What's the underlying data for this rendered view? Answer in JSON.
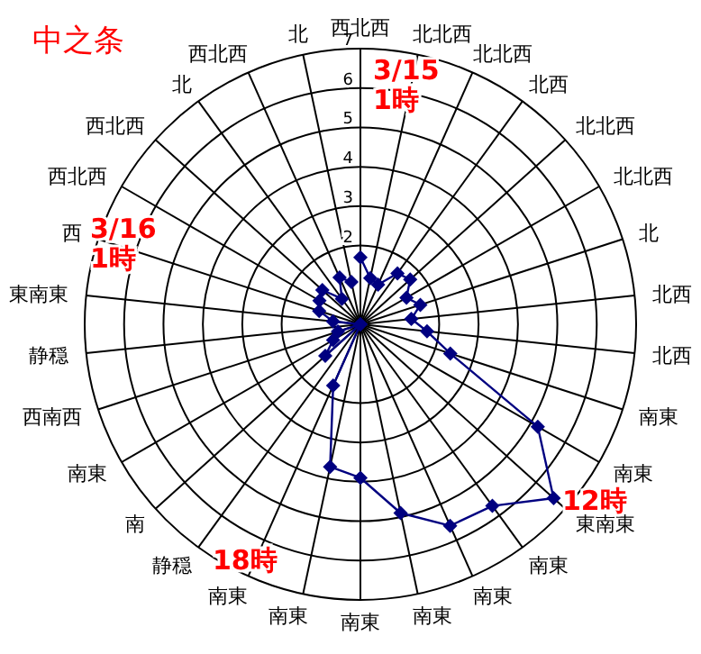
{
  "chart_data": {
    "type": "radar",
    "title": "中之条",
    "categories": [
      "西北西",
      "北北西",
      "北北西",
      "北西",
      "北北西",
      "北北西",
      "北",
      "北西",
      "北西",
      "南東",
      "南東",
      "東南東",
      "南東",
      "南東",
      "南東",
      "南東",
      "南東",
      "南東",
      "静穏",
      "南",
      "南東",
      "西南西",
      "静穏",
      "東南東",
      "西",
      "西北西",
      "西北西",
      "北",
      "西北西",
      "北"
    ],
    "series": [
      {
        "color": "#000080",
        "values": [
          1.7,
          1.2,
          1.1,
          1.6,
          1.7,
          1.35,
          1.6,
          1.3,
          1.7,
          2.4,
          5.2,
          6.6,
          5.7,
          5.6,
          4.9,
          3.9,
          3.7,
          1.7,
          0,
          1.2,
          0.8,
          0.6,
          0,
          0.7,
          1.1,
          1.2,
          1.3,
          0.8,
          1.3,
          1.1
        ]
      }
    ],
    "ylim": [
      0,
      7
    ],
    "yticks": [
      2,
      3,
      4,
      5,
      6,
      7
    ],
    "grid": true,
    "marker": "diamond",
    "line_style": "solid",
    "annotations": [
      "3/15\n1時",
      "3/16\n1時",
      "12時",
      "18時"
    ]
  }
}
